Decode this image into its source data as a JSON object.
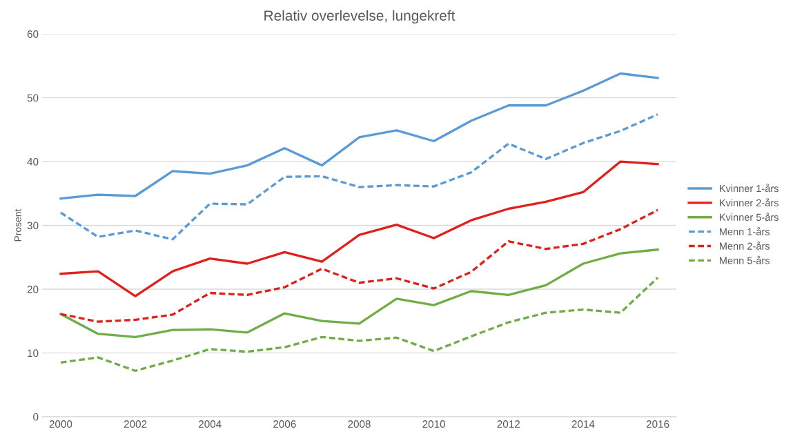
{
  "chart_data": {
    "type": "line",
    "title": "Relativ overlevelse, lungekreft",
    "ylabel": "Prosent",
    "x": [
      2000,
      2001,
      2002,
      2003,
      2004,
      2005,
      2006,
      2007,
      2008,
      2009,
      2010,
      2011,
      2012,
      2013,
      2014,
      2015,
      2016
    ],
    "xlim": [
      1999.5,
      2016.5
    ],
    "xticks": [
      2000,
      2002,
      2004,
      2006,
      2008,
      2010,
      2012,
      2014,
      2016
    ],
    "ylim": [
      0,
      60
    ],
    "yticks": [
      0,
      10,
      20,
      30,
      40,
      50,
      60
    ],
    "grid": "y",
    "legend": "right",
    "marker": "none",
    "series": [
      {
        "name": "Kvinner 1-års",
        "color": "#5b9bd5",
        "line_style": "solid",
        "values": [
          34.2,
          34.8,
          34.6,
          38.5,
          38.1,
          39.4,
          42.1,
          39.4,
          43.8,
          44.9,
          43.2,
          46.4,
          48.8,
          48.8,
          51.1,
          53.8,
          53.1
        ]
      },
      {
        "name": "Kvinner 2-års",
        "color": "#e0201b",
        "line_style": "solid",
        "values": [
          22.4,
          22.8,
          18.9,
          22.8,
          24.8,
          24.0,
          25.8,
          24.3,
          28.5,
          30.1,
          28.0,
          30.8,
          32.6,
          33.7,
          35.2,
          40.0,
          39.6
        ]
      },
      {
        "name": "Kvinner 5-års",
        "color": "#70ad47",
        "line_style": "solid",
        "values": [
          16.1,
          13.0,
          12.5,
          13.6,
          13.7,
          13.2,
          16.2,
          15.0,
          14.6,
          18.5,
          17.5,
          19.7,
          19.1,
          20.6,
          24.0,
          25.6,
          26.2
        ]
      },
      {
        "name": "Menn 1-års",
        "color": "#5b9bd5",
        "line_style": "dashed",
        "values": [
          32.0,
          28.2,
          29.2,
          27.8,
          33.4,
          33.3,
          37.6,
          37.7,
          36.0,
          36.3,
          36.1,
          38.3,
          42.8,
          40.4,
          42.9,
          44.8,
          47.4
        ]
      },
      {
        "name": "Menn 2-års",
        "color": "#e0201b",
        "line_style": "dashed",
        "values": [
          16.1,
          14.9,
          15.2,
          16.0,
          19.4,
          19.1,
          20.3,
          23.2,
          21.0,
          21.7,
          20.1,
          22.7,
          27.5,
          26.3,
          27.1,
          29.4,
          32.4
        ]
      },
      {
        "name": "Menn 5-års",
        "color": "#70ad47",
        "line_style": "dashed",
        "values": [
          8.5,
          9.3,
          7.2,
          8.8,
          10.6,
          10.2,
          10.9,
          12.5,
          11.9,
          12.4,
          10.3,
          12.6,
          14.8,
          16.3,
          16.8,
          16.3,
          21.8
        ]
      }
    ]
  }
}
